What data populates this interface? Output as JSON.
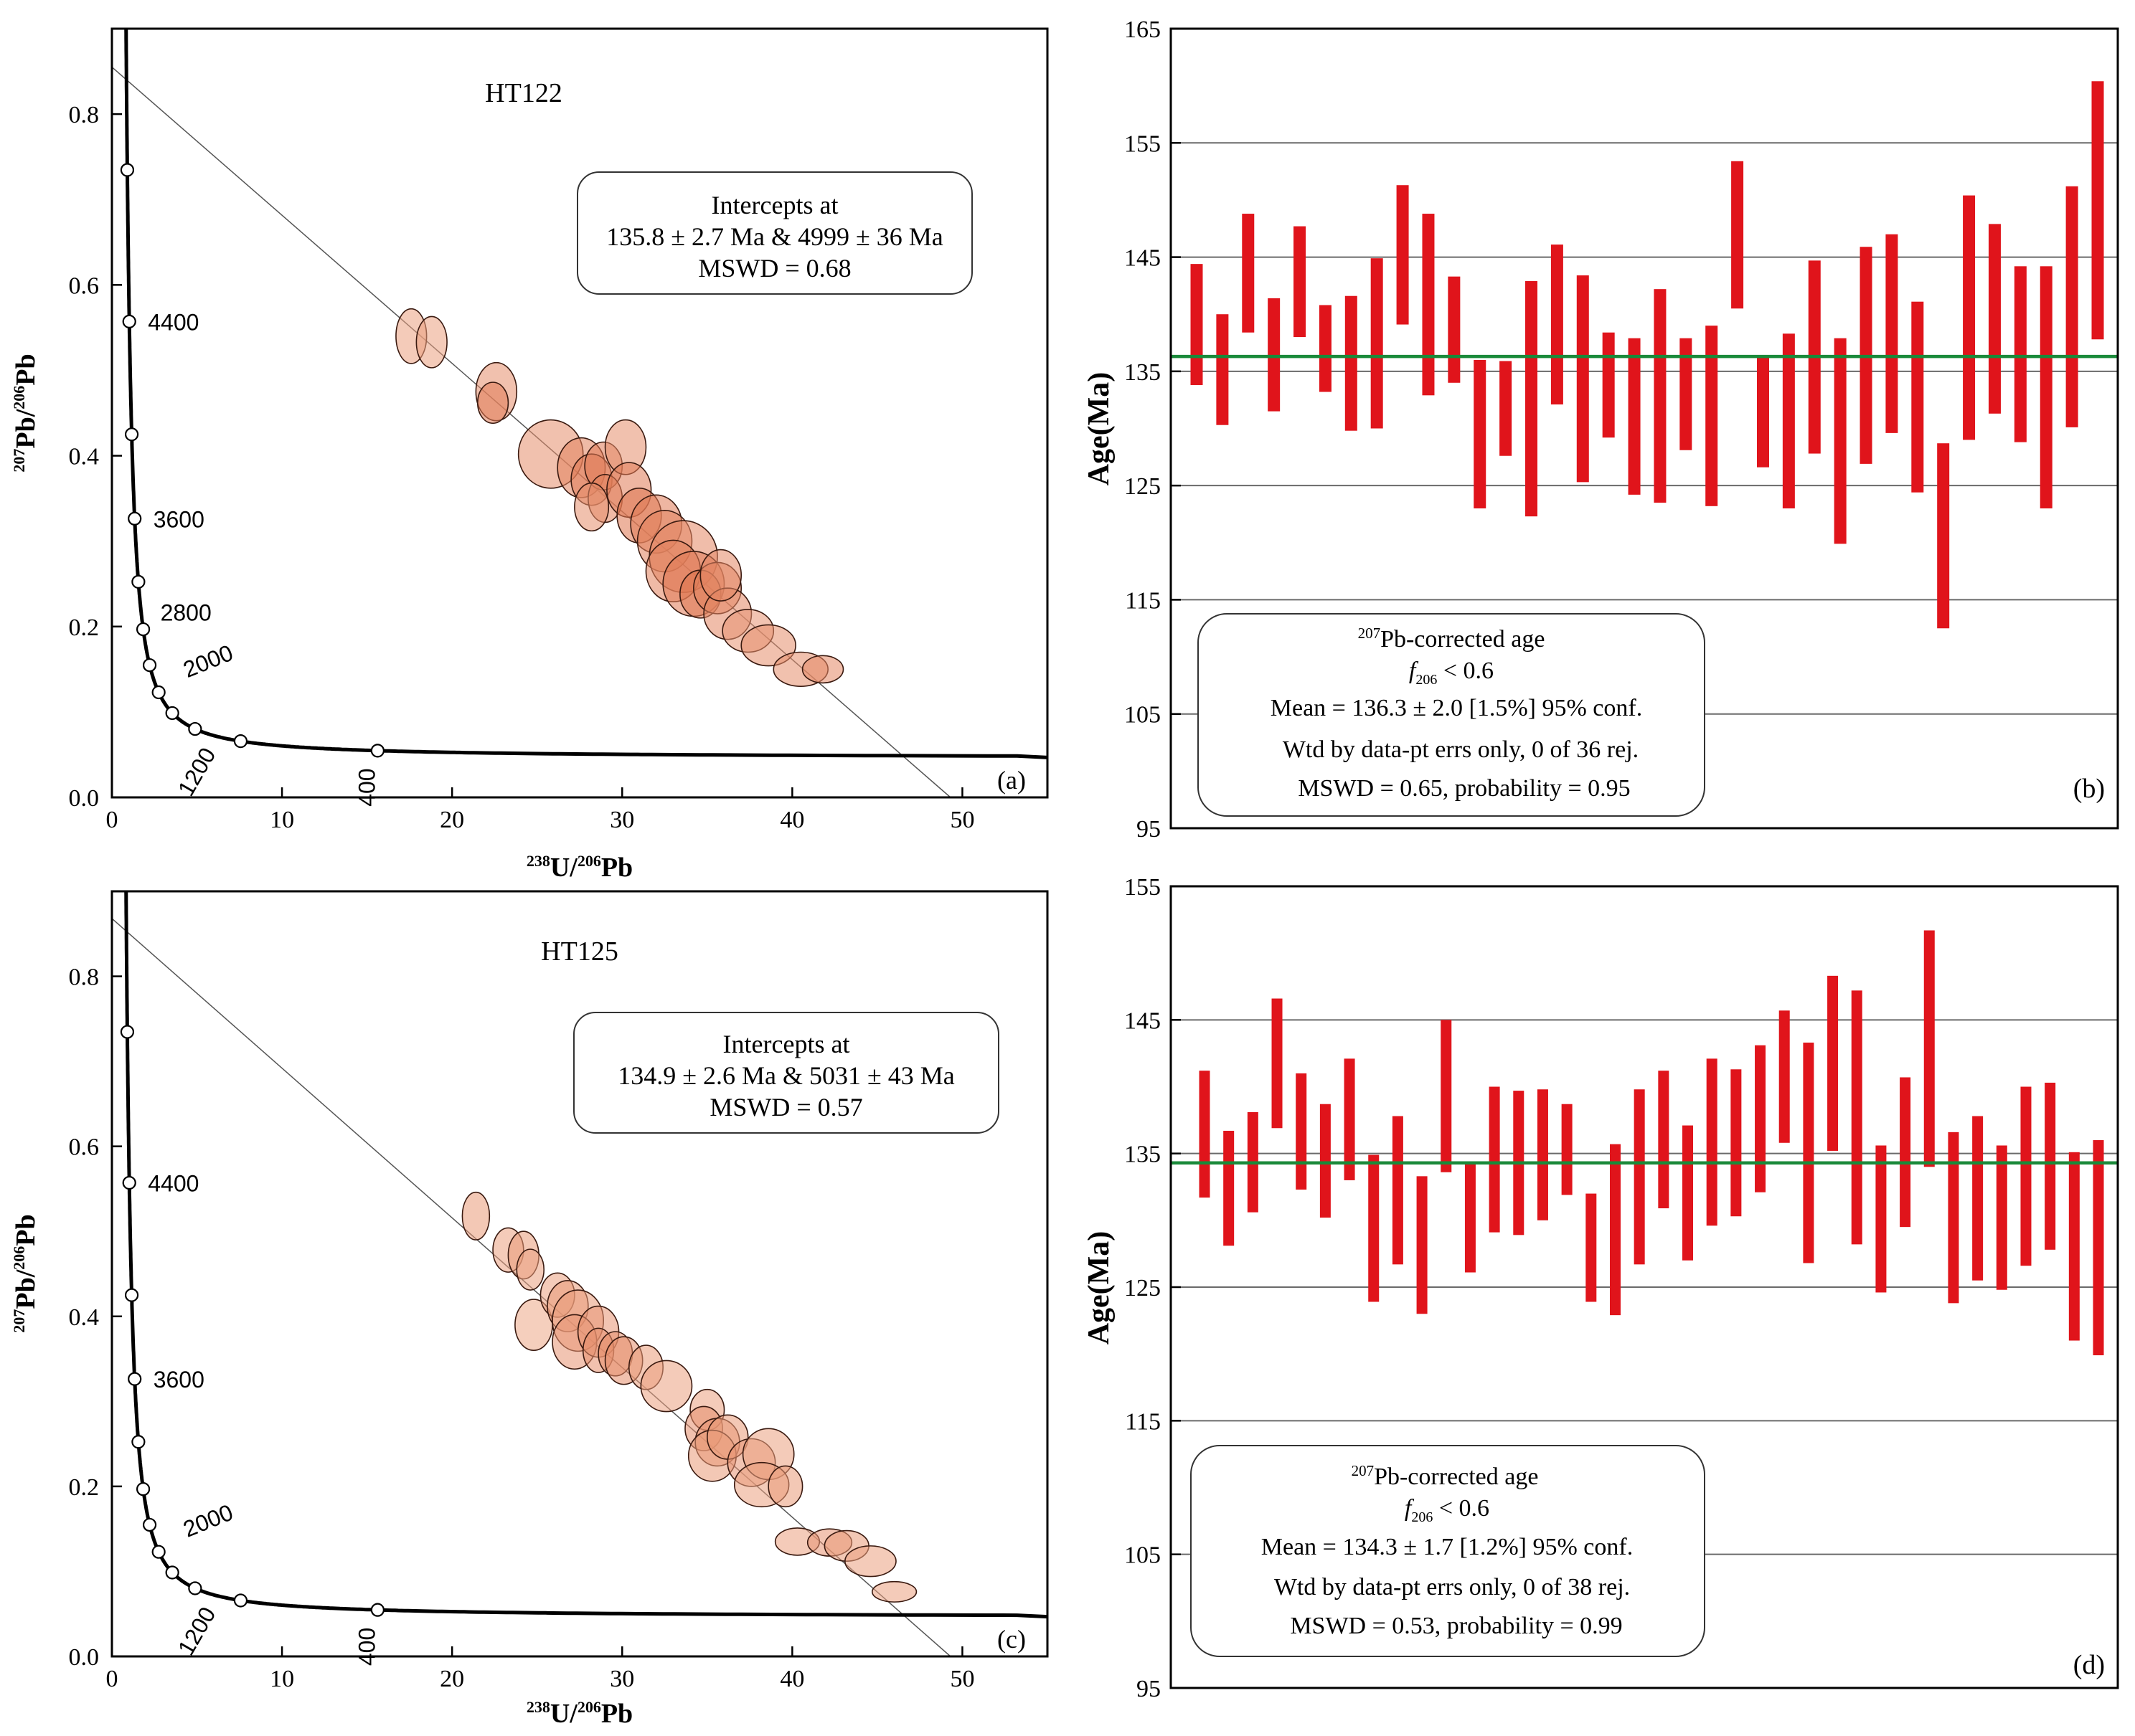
{
  "chart_data": [
    {
      "panel": "a",
      "type": "scatter",
      "subtype": "tera-wasserburg-concordia",
      "title": "HT122",
      "xlabel": {
        "main": "U/",
        "sup1": "238",
        "sup2": "206",
        "tail": "Pb"
      },
      "ylabel": {
        "main": "Pb/",
        "sup1": "207",
        "sup2": "206",
        "tail": "Pb"
      },
      "xlim": [
        0,
        55
      ],
      "ylim": [
        0,
        0.9
      ],
      "xticks": [
        0,
        10,
        20,
        30,
        40,
        50
      ],
      "yticks": [
        0.0,
        0.2,
        0.4,
        0.6,
        0.8
      ],
      "ytick_labels": [
        "0.0",
        "0.2",
        "0.4",
        "0.6",
        "0.8"
      ],
      "concordia_ages": [
        {
          "age": 4400,
          "label": "4400"
        },
        {
          "age": 3600,
          "label": "3600"
        },
        {
          "age": 2800,
          "label": "2800"
        },
        {
          "age": 2000,
          "label": "2000"
        },
        {
          "age": 1200,
          "label": "1200"
        },
        {
          "age": 400,
          "label": "400"
        }
      ],
      "concordia_markers": [
        4800,
        4400,
        4000,
        3600,
        3200,
        2800,
        2400,
        2000,
        1600,
        1200,
        800,
        400
      ],
      "discordia": {
        "y_intercept": 0.855,
        "x_intercept": 49.3
      },
      "annotation": {
        "line1": "Intercepts at",
        "line2": "135.8 ± 2.7 Ma & 4999 ± 36 Ma",
        "line3": "MSWD = 0.68"
      },
      "panel_label": "(a)",
      "ellipses": [
        {
          "x": 17.6,
          "y": 0.54,
          "rx": 0.9,
          "ry": 0.032,
          "shade": 0.3
        },
        {
          "x": 18.8,
          "y": 0.533,
          "rx": 0.9,
          "ry": 0.03,
          "shade": 0.3
        },
        {
          "x": 22.6,
          "y": 0.475,
          "rx": 1.2,
          "ry": 0.034,
          "shade": 0.45
        },
        {
          "x": 22.4,
          "y": 0.462,
          "rx": 0.9,
          "ry": 0.024,
          "shade": 0.6
        },
        {
          "x": 25.8,
          "y": 0.402,
          "rx": 1.9,
          "ry": 0.04,
          "shade": 0.45
        },
        {
          "x": 27.6,
          "y": 0.386,
          "rx": 1.4,
          "ry": 0.035,
          "shade": 0.55
        },
        {
          "x": 28.2,
          "y": 0.372,
          "rx": 1.2,
          "ry": 0.03,
          "shade": 0.6
        },
        {
          "x": 28.9,
          "y": 0.388,
          "rx": 1.1,
          "ry": 0.028,
          "shade": 0.6
        },
        {
          "x": 29.0,
          "y": 0.35,
          "rx": 1.0,
          "ry": 0.028,
          "shade": 0.55
        },
        {
          "x": 30.2,
          "y": 0.41,
          "rx": 1.2,
          "ry": 0.032,
          "shade": 0.45
        },
        {
          "x": 28.2,
          "y": 0.34,
          "rx": 1.0,
          "ry": 0.028,
          "shade": 0.45
        },
        {
          "x": 30.4,
          "y": 0.36,
          "rx": 1.3,
          "ry": 0.032,
          "shade": 0.6
        },
        {
          "x": 31.0,
          "y": 0.33,
          "rx": 1.3,
          "ry": 0.032,
          "shade": 0.65
        },
        {
          "x": 32.0,
          "y": 0.32,
          "rx": 1.5,
          "ry": 0.034,
          "shade": 0.6
        },
        {
          "x": 32.5,
          "y": 0.3,
          "rx": 1.6,
          "ry": 0.036,
          "shade": 0.55
        },
        {
          "x": 33.6,
          "y": 0.282,
          "rx": 2.0,
          "ry": 0.042,
          "shade": 0.5
        },
        {
          "x": 33.0,
          "y": 0.265,
          "rx": 1.6,
          "ry": 0.036,
          "shade": 0.55
        },
        {
          "x": 34.2,
          "y": 0.25,
          "rx": 1.8,
          "ry": 0.038,
          "shade": 0.6
        },
        {
          "x": 34.6,
          "y": 0.238,
          "rx": 1.2,
          "ry": 0.028,
          "shade": 0.65
        },
        {
          "x": 35.6,
          "y": 0.245,
          "rx": 1.4,
          "ry": 0.03,
          "shade": 0.55
        },
        {
          "x": 36.2,
          "y": 0.215,
          "rx": 1.4,
          "ry": 0.03,
          "shade": 0.5
        },
        {
          "x": 35.8,
          "y": 0.26,
          "rx": 1.2,
          "ry": 0.03,
          "shade": 0.5
        },
        {
          "x": 37.4,
          "y": 0.195,
          "rx": 1.5,
          "ry": 0.025,
          "shade": 0.4
        },
        {
          "x": 38.6,
          "y": 0.178,
          "rx": 1.6,
          "ry": 0.024,
          "shade": 0.45
        },
        {
          "x": 40.5,
          "y": 0.15,
          "rx": 1.6,
          "ry": 0.02,
          "shade": 0.45
        },
        {
          "x": 41.8,
          "y": 0.15,
          "rx": 1.2,
          "ry": 0.016,
          "shade": 0.5
        }
      ]
    },
    {
      "panel": "b",
      "type": "bar",
      "subtype": "weighted-mean-error-bars",
      "ylabel": "Age(Ma)",
      "ylim": [
        95,
        165
      ],
      "yticks": [
        95,
        105,
        115,
        125,
        135,
        145,
        155,
        165
      ],
      "mean": 136.3,
      "panel_label": "(b)",
      "annotation": {
        "sup": "207",
        "line1": "Pb-corrected age",
        "f_label": "f",
        "f_sub": "206",
        "f_rest": " < 0.6",
        "line3": "Mean = 136.3 ± 2.0  [1.5%]  95% conf.",
        "line4": "Wtd by data-pt errs only, 0 of 36 rej.",
        "line5": "MSWD = 0.65, probability = 0.95"
      },
      "intervals": [
        [
          133.8,
          144.4
        ],
        [
          130.3,
          140.0
        ],
        [
          138.4,
          148.8
        ],
        [
          131.5,
          141.4
        ],
        [
          138.0,
          147.7
        ],
        [
          133.2,
          140.8
        ],
        [
          129.8,
          141.6
        ],
        [
          130.0,
          144.9
        ],
        [
          139.1,
          151.3
        ],
        [
          132.9,
          148.8
        ],
        [
          134.0,
          143.3
        ],
        [
          123.0,
          136.0
        ],
        [
          127.6,
          135.9
        ],
        [
          122.3,
          142.9
        ],
        [
          132.1,
          146.1
        ],
        [
          125.3,
          143.4
        ],
        [
          129.2,
          138.4
        ],
        [
          124.2,
          137.9
        ],
        [
          123.5,
          142.2
        ],
        [
          128.1,
          137.9
        ],
        [
          123.2,
          139.0
        ],
        [
          140.5,
          153.4
        ],
        [
          126.6,
          136.3
        ],
        [
          123.0,
          138.3
        ],
        [
          127.8,
          144.7
        ],
        [
          119.9,
          137.9
        ],
        [
          126.9,
          145.9
        ],
        [
          129.6,
          147.0
        ],
        [
          124.4,
          141.1
        ],
        [
          112.5,
          128.7
        ],
        [
          129.0,
          150.4
        ],
        [
          131.3,
          147.9
        ],
        [
          128.8,
          144.2
        ],
        [
          123.0,
          144.2
        ],
        [
          130.1,
          151.2
        ],
        [
          137.8,
          160.4
        ]
      ]
    },
    {
      "panel": "c",
      "type": "scatter",
      "subtype": "tera-wasserburg-concordia",
      "title": "HT125",
      "xlabel": {
        "main": "U/",
        "sup1": "238",
        "sup2": "206",
        "tail": "Pb"
      },
      "ylabel": {
        "main": "Pb/",
        "sup1": "207",
        "sup2": "206",
        "tail": "Pb"
      },
      "xlim": [
        0,
        55
      ],
      "ylim": [
        0,
        0.9
      ],
      "xticks": [
        0,
        10,
        20,
        30,
        40,
        50
      ],
      "yticks": [
        0.0,
        0.2,
        0.4,
        0.6,
        0.8
      ],
      "ytick_labels": [
        "0.0",
        "0.2",
        "0.4",
        "0.6",
        "0.8"
      ],
      "concordia_ages": [
        {
          "age": 4400,
          "label": "4400"
        },
        {
          "age": 3600,
          "label": "3600"
        },
        {
          "age": 2000,
          "label": "2000"
        },
        {
          "age": 1200,
          "label": "1200"
        },
        {
          "age": 400,
          "label": "400"
        }
      ],
      "concordia_markers": [
        4800,
        4400,
        4000,
        3600,
        3200,
        2800,
        2400,
        2000,
        1600,
        1200,
        800,
        400
      ],
      "discordia": {
        "y_intercept": 0.868,
        "x_intercept": 49.3
      },
      "annotation": {
        "line1": "Intercepts at",
        "line2": "134.9 ± 2.6 Ma & 5031 ± 43 Ma",
        "line3": "MSWD = 0.57"
      },
      "panel_label": "(c)",
      "ellipses": [
        {
          "x": 21.4,
          "y": 0.518,
          "rx": 0.8,
          "ry": 0.028,
          "shade": 0.35
        },
        {
          "x": 23.3,
          "y": 0.478,
          "rx": 0.9,
          "ry": 0.026,
          "shade": 0.3
        },
        {
          "x": 24.2,
          "y": 0.472,
          "rx": 0.9,
          "ry": 0.028,
          "shade": 0.35
        },
        {
          "x": 24.6,
          "y": 0.455,
          "rx": 0.8,
          "ry": 0.024,
          "shade": 0.3
        },
        {
          "x": 24.8,
          "y": 0.39,
          "rx": 1.1,
          "ry": 0.03,
          "shade": 0.25
        },
        {
          "x": 26.2,
          "y": 0.425,
          "rx": 1.0,
          "ry": 0.026,
          "shade": 0.3
        },
        {
          "x": 26.8,
          "y": 0.412,
          "rx": 1.2,
          "ry": 0.03,
          "shade": 0.35
        },
        {
          "x": 27.4,
          "y": 0.395,
          "rx": 1.5,
          "ry": 0.036,
          "shade": 0.35
        },
        {
          "x": 27.2,
          "y": 0.37,
          "rx": 1.3,
          "ry": 0.032,
          "shade": 0.4
        },
        {
          "x": 28.6,
          "y": 0.382,
          "rx": 1.2,
          "ry": 0.03,
          "shade": 0.4
        },
        {
          "x": 28.6,
          "y": 0.36,
          "rx": 0.9,
          "ry": 0.026,
          "shade": 0.45
        },
        {
          "x": 29.6,
          "y": 0.356,
          "rx": 1.0,
          "ry": 0.026,
          "shade": 0.45
        },
        {
          "x": 30.1,
          "y": 0.348,
          "rx": 1.1,
          "ry": 0.028,
          "shade": 0.45
        },
        {
          "x": 31.4,
          "y": 0.34,
          "rx": 1.0,
          "ry": 0.026,
          "shade": 0.35
        },
        {
          "x": 32.6,
          "y": 0.318,
          "rx": 1.5,
          "ry": 0.03,
          "shade": 0.3
        },
        {
          "x": 35.0,
          "y": 0.29,
          "rx": 1.0,
          "ry": 0.024,
          "shade": 0.3
        },
        {
          "x": 34.8,
          "y": 0.268,
          "rx": 1.1,
          "ry": 0.026,
          "shade": 0.45
        },
        {
          "x": 35.6,
          "y": 0.252,
          "rx": 1.3,
          "ry": 0.028,
          "shade": 0.4
        },
        {
          "x": 35.3,
          "y": 0.236,
          "rx": 1.4,
          "ry": 0.03,
          "shade": 0.35
        },
        {
          "x": 36.2,
          "y": 0.258,
          "rx": 1.2,
          "ry": 0.026,
          "shade": 0.35
        },
        {
          "x": 37.6,
          "y": 0.228,
          "rx": 1.4,
          "ry": 0.028,
          "shade": 0.4
        },
        {
          "x": 38.6,
          "y": 0.238,
          "rx": 1.5,
          "ry": 0.03,
          "shade": 0.3
        },
        {
          "x": 38.2,
          "y": 0.202,
          "rx": 1.6,
          "ry": 0.026,
          "shade": 0.3
        },
        {
          "x": 39.6,
          "y": 0.2,
          "rx": 1.0,
          "ry": 0.024,
          "shade": 0.35
        },
        {
          "x": 40.3,
          "y": 0.135,
          "rx": 1.3,
          "ry": 0.016,
          "shade": 0.3
        },
        {
          "x": 42.2,
          "y": 0.134,
          "rx": 1.3,
          "ry": 0.016,
          "shade": 0.4
        },
        {
          "x": 43.2,
          "y": 0.13,
          "rx": 1.3,
          "ry": 0.018,
          "shade": 0.35
        },
        {
          "x": 44.6,
          "y": 0.112,
          "rx": 1.5,
          "ry": 0.018,
          "shade": 0.3
        },
        {
          "x": 46.0,
          "y": 0.076,
          "rx": 1.3,
          "ry": 0.012,
          "shade": 0.3
        }
      ]
    },
    {
      "panel": "d",
      "type": "bar",
      "subtype": "weighted-mean-error-bars",
      "ylabel": "Age(Ma)",
      "ylim": [
        95,
        155
      ],
      "yticks": [
        95,
        105,
        115,
        125,
        135,
        145,
        155
      ],
      "mean": 134.3,
      "panel_label": "(d)",
      "annotation": {
        "sup": "207",
        "line1": "Pb-corrected age",
        "f_label": "f",
        "f_sub": "206",
        "f_rest": " < 0.6",
        "line3": "Mean = 134.3 ± 1.7  [1.2%]  95% conf.",
        "line4": "Wtd by data-pt errs only, 0 of 38 rej.",
        "line5": "MSWD = 0.53, probability = 0.99"
      },
      "intervals": [
        [
          131.7,
          141.2
        ],
        [
          128.1,
          136.7
        ],
        [
          130.6,
          138.1
        ],
        [
          136.9,
          146.6
        ],
        [
          132.3,
          141.0
        ],
        [
          130.2,
          138.7
        ],
        [
          133.0,
          142.1
        ],
        [
          123.9,
          134.9
        ],
        [
          126.7,
          137.8
        ],
        [
          123.0,
          133.3
        ],
        [
          133.6,
          145.0
        ],
        [
          126.1,
          134.2
        ],
        [
          129.1,
          140.0
        ],
        [
          128.9,
          139.7
        ],
        [
          130.0,
          139.8
        ],
        [
          131.9,
          138.7
        ],
        [
          123.9,
          132.0
        ],
        [
          122.9,
          135.7
        ],
        [
          126.7,
          139.8
        ],
        [
          130.9,
          141.2
        ],
        [
          127.0,
          137.1
        ],
        [
          129.6,
          142.1
        ],
        [
          130.3,
          141.3
        ],
        [
          132.1,
          143.1
        ],
        [
          135.8,
          145.7
        ],
        [
          126.8,
          143.3
        ],
        [
          135.2,
          148.3
        ],
        [
          128.2,
          147.2
        ],
        [
          124.6,
          135.6
        ],
        [
          129.5,
          140.7
        ],
        [
          134.0,
          151.7
        ],
        [
          123.8,
          136.6
        ],
        [
          125.5,
          137.8
        ],
        [
          124.8,
          135.6
        ],
        [
          126.6,
          140.0
        ],
        [
          127.8,
          140.3
        ],
        [
          121.0,
          135.1
        ],
        [
          119.9,
          136.0
        ]
      ]
    }
  ]
}
